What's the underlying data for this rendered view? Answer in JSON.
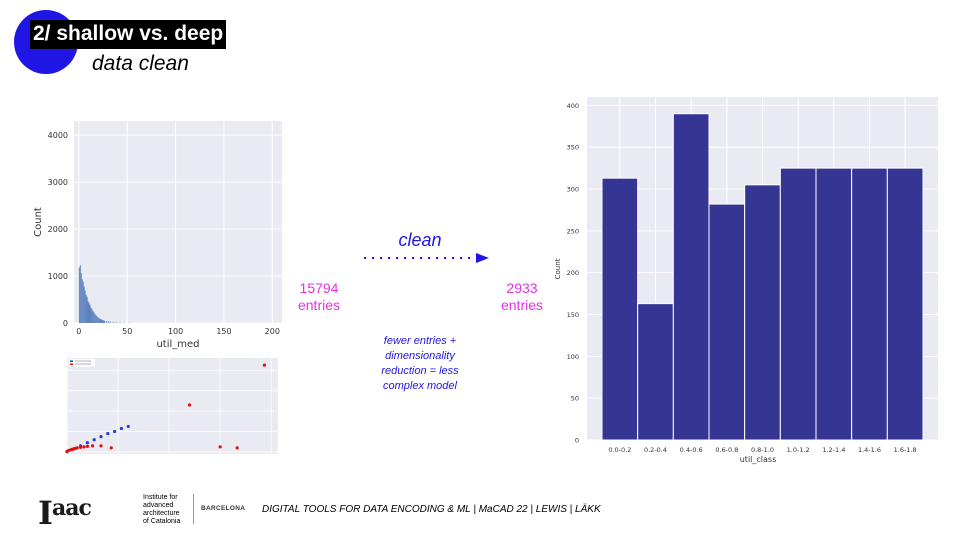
{
  "slide": {
    "title": "2/ shallow vs. deep",
    "subtitle": "data clean",
    "clean_label": "clean",
    "left_count": {
      "value": "15794",
      "unit": "entries"
    },
    "right_count": {
      "value": "2933",
      "unit": "entries"
    },
    "note_lines": [
      "fewer entries +",
      "dimensionality",
      "reduction = less",
      "complex model"
    ],
    "footer": "DIGITAL TOOLS FOR DATA ENCODING & ML | MaCAD 22 | LEWIS | LÄKK",
    "logo": {
      "mark": "I",
      "mark_sup": "aac",
      "institute_lines": [
        "Institute for",
        "advanced",
        "architecture",
        "of Catalonia"
      ],
      "city": "BARCELONA"
    }
  },
  "colors": {
    "accent_blue": "#1f16e6",
    "magenta": "#e233e2",
    "bar_navy": "#353594",
    "hist_blue": "#5b7fbf",
    "plot_bg": "#eaeaf2"
  },
  "chart_data": [
    {
      "type": "bar",
      "description_role": "histogram of raw util_med",
      "xlabel": "util_med",
      "ylabel": "Count",
      "xlim": [
        -5,
        210
      ],
      "ylim": [
        0,
        4300
      ],
      "xticks": [
        0,
        50,
        100,
        150,
        200
      ],
      "yticks": [
        0,
        1000,
        2000,
        3000,
        4000
      ],
      "bin_width": 1,
      "bin_starts": [
        0,
        1,
        2,
        3,
        4,
        5,
        6,
        7,
        8,
        9,
        10,
        11,
        12,
        13,
        14,
        15,
        16,
        17,
        18,
        19,
        20,
        21,
        22,
        23,
        24,
        25,
        26,
        28,
        30,
        32,
        35,
        38,
        42,
        46,
        52
      ],
      "values": [
        1180,
        1230,
        1060,
        930,
        880,
        780,
        690,
        600,
        560,
        470,
        430,
        390,
        330,
        300,
        260,
        230,
        200,
        170,
        150,
        130,
        110,
        95,
        85,
        75,
        65,
        55,
        50,
        40,
        35,
        30,
        25,
        20,
        15,
        10,
        8
      ],
      "grid": true
    },
    {
      "type": "scatter",
      "description_role": "small comparison scatter (text illegible)",
      "series": [
        {
          "color": "#1f3fd6",
          "points": [
            [
              0,
              0.2
            ],
            [
              20,
              3
            ],
            [
              40,
              6
            ],
            [
              60,
              9
            ],
            [
              80,
              12
            ],
            [
              100,
              15
            ],
            [
              120,
              18
            ],
            [
              140,
              20
            ],
            [
              160,
              23
            ],
            [
              180,
              25
            ]
          ]
        },
        {
          "color": "#e01010",
          "points": [
            [
              0,
              0.5
            ],
            [
              5,
              1.5
            ],
            [
              10,
              2
            ],
            [
              15,
              2.5
            ],
            [
              20,
              3
            ],
            [
              25,
              3.5
            ],
            [
              30,
              4
            ],
            [
              40,
              4.5
            ],
            [
              50,
              5
            ],
            [
              60,
              5.5
            ],
            [
              75,
              6
            ],
            [
              100,
              6
            ],
            [
              130,
              4
            ],
            [
              360,
              46
            ],
            [
              450,
              5
            ],
            [
              500,
              4
            ],
            [
              580,
              85
            ]
          ]
        }
      ],
      "xlim": [
        0,
        620
      ],
      "ylim": [
        -2,
        92
      ],
      "grid": true
    },
    {
      "type": "bar",
      "description_role": "counts per util_class",
      "categories": [
        "0.0-0.2",
        "0.2-0.4",
        "0.4-0.6",
        "0.6-0.8",
        "0.8-1.0",
        "1.0-1.2",
        "1.2-1.4",
        "1.4-1.6",
        "1.6-1.8"
      ],
      "values": [
        313,
        163,
        390,
        282,
        305,
        325,
        325,
        325,
        325
      ],
      "xlabel": "util_class",
      "ylabel": "Count",
      "ylim": [
        0,
        410
      ],
      "yticks": [
        0,
        50,
        100,
        150,
        200,
        250,
        300,
        350,
        400
      ],
      "grid": true
    }
  ]
}
